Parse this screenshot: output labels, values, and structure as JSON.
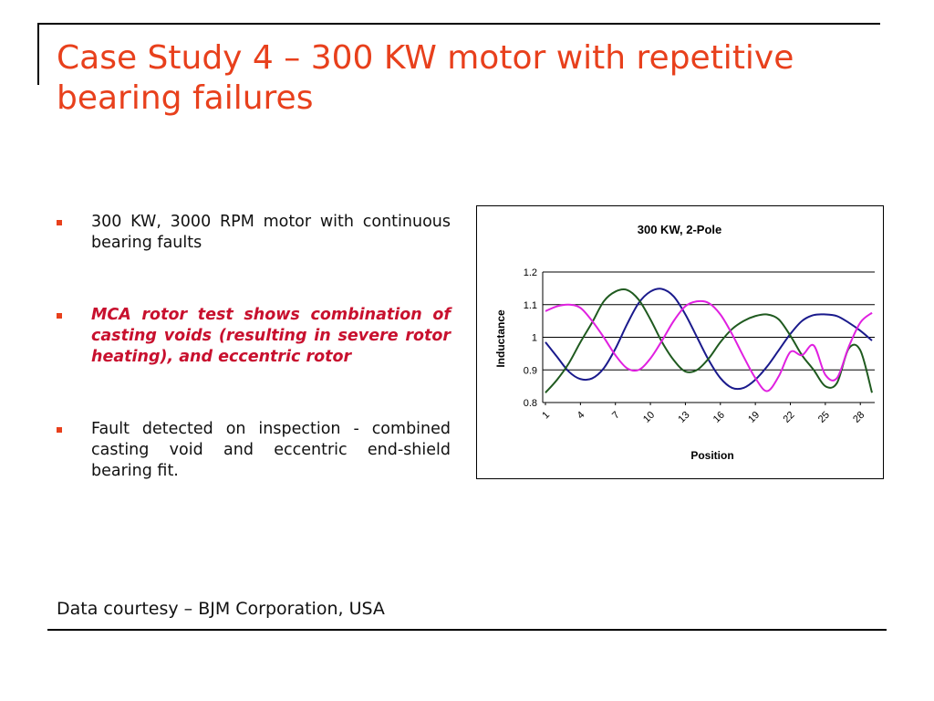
{
  "slide": {
    "title": "Case Study 4 – 300 KW motor with repetitive bearing failures",
    "bullets": [
      "300 KW, 3000 RPM motor with continuous bearing faults",
      "MCA rotor test shows combination of casting voids (resulting in severe rotor heating), and eccentric rotor",
      "Fault detected on inspection - combined casting void and eccentric end-shield bearing fit."
    ],
    "footer": "Data courtesy – BJM Corporation, USA"
  },
  "chart_data": {
    "type": "line",
    "title": "300 KW, 2-Pole",
    "xlabel": "Position",
    "ylabel": "Inductance",
    "ylim": [
      0.8,
      1.2
    ],
    "yticks": [
      "0.8",
      "0.9",
      "1",
      "1.1",
      "1.2"
    ],
    "xticks": [
      "1",
      "4",
      "7",
      "10",
      "13",
      "16",
      "19",
      "22",
      "25",
      "28"
    ],
    "grid": "horizontal",
    "colors": [
      "#1a1a8c",
      "#1f5a1f",
      "#e020e0"
    ],
    "x": [
      1,
      2,
      3,
      4,
      5,
      6,
      7,
      8,
      9,
      10,
      11,
      12,
      13,
      14,
      15,
      16,
      17,
      18,
      19,
      20,
      21,
      22,
      23,
      24,
      25,
      26,
      27,
      28,
      29
    ],
    "series": [
      {
        "color": "#1a1a8c",
        "values": [
          0.985,
          0.94,
          0.895,
          0.872,
          0.874,
          0.905,
          0.965,
          1.04,
          1.105,
          1.14,
          1.148,
          1.125,
          1.07,
          1.0,
          0.93,
          0.875,
          0.845,
          0.845,
          0.87,
          0.91,
          0.96,
          1.01,
          1.05,
          1.068,
          1.07,
          1.065,
          1.045,
          1.02,
          0.99
        ]
      },
      {
        "color": "#1f5a1f",
        "values": [
          0.83,
          0.87,
          0.92,
          0.985,
          1.045,
          1.11,
          1.14,
          1.145,
          1.115,
          1.055,
          0.985,
          0.93,
          0.895,
          0.9,
          0.935,
          0.985,
          1.025,
          1.05,
          1.065,
          1.07,
          1.055,
          1.005,
          0.945,
          0.9,
          0.85,
          0.86,
          0.965,
          0.96,
          0.83
        ]
      },
      {
        "color": "#e020e0",
        "values": [
          1.08,
          1.095,
          1.1,
          1.09,
          1.05,
          1.0,
          0.945,
          0.905,
          0.9,
          0.935,
          0.99,
          1.05,
          1.095,
          1.11,
          1.105,
          1.07,
          1.01,
          0.94,
          0.875,
          0.835,
          0.88,
          0.955,
          0.945,
          0.975,
          0.885,
          0.875,
          0.97,
          1.045,
          1.075
        ]
      }
    ]
  }
}
